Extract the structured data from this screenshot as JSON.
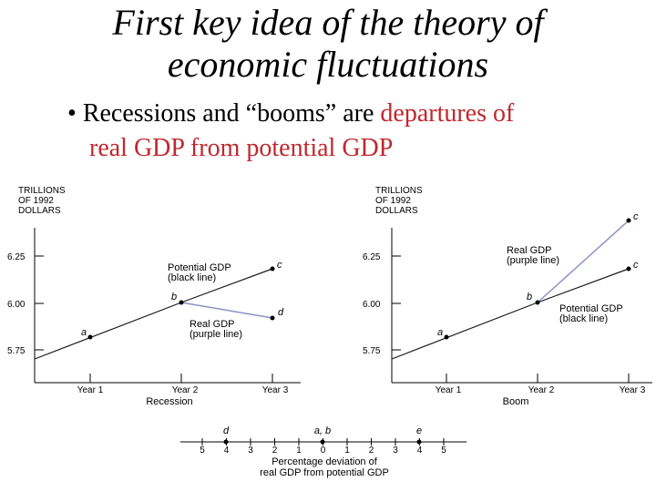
{
  "slide": {
    "title_line1": "First key idea of the theory of",
    "title_line2": "economic fluctuations",
    "bullet_marker": "•",
    "bullet_black": "Recessions and “booms” are ",
    "bullet_red_1": "departures of",
    "bullet_red_2": "real GDP from potential GDP"
  },
  "left_chart": {
    "ylabel_1": "TRILLIONS",
    "ylabel_2": "OF 1992",
    "ylabel_3": "DOLLARS",
    "yticks": [
      "6.25",
      "6.00",
      "5.75"
    ],
    "xticks": [
      "Year 1",
      "Year 2",
      "Year 3"
    ],
    "xlabel": "Recession",
    "potential_label_1": "Potential GDP",
    "potential_label_2": "(black line)",
    "real_label_1": "Real GDP",
    "real_label_2": "(purple line)",
    "points": {
      "a": "a",
      "b": "b",
      "c": "c",
      "d": "d"
    }
  },
  "right_chart": {
    "ylabel_1": "TRILLIONS",
    "ylabel_2": "OF 1992",
    "ylabel_3": "DOLLARS",
    "yticks": [
      "6.25",
      "6.00",
      "5.75"
    ],
    "xticks": [
      "Year 1",
      "Year 2",
      "Year 3"
    ],
    "xlabel": "Boom",
    "real_label_1": "Real GDP",
    "real_label_2": "(purple line)",
    "potential_label_1": "Potential GDP",
    "potential_label_2": "(black line)",
    "points": {
      "a": "a",
      "b": "b",
      "c": "c",
      "c2": "c"
    }
  },
  "number_line": {
    "ticks": [
      "5",
      "4",
      "3",
      "2",
      "1",
      "0",
      "1",
      "2",
      "3",
      "4",
      "5"
    ],
    "label_1": "Percentage deviation of",
    "label_2": "real GDP from potential GDP",
    "point_d": "d",
    "point_ab": "a, b",
    "point_e": "e"
  },
  "colors": {
    "real_gdp_line": "#8a92c8",
    "potential_line": "#1a1a1a",
    "red_text": "#c0272d"
  }
}
